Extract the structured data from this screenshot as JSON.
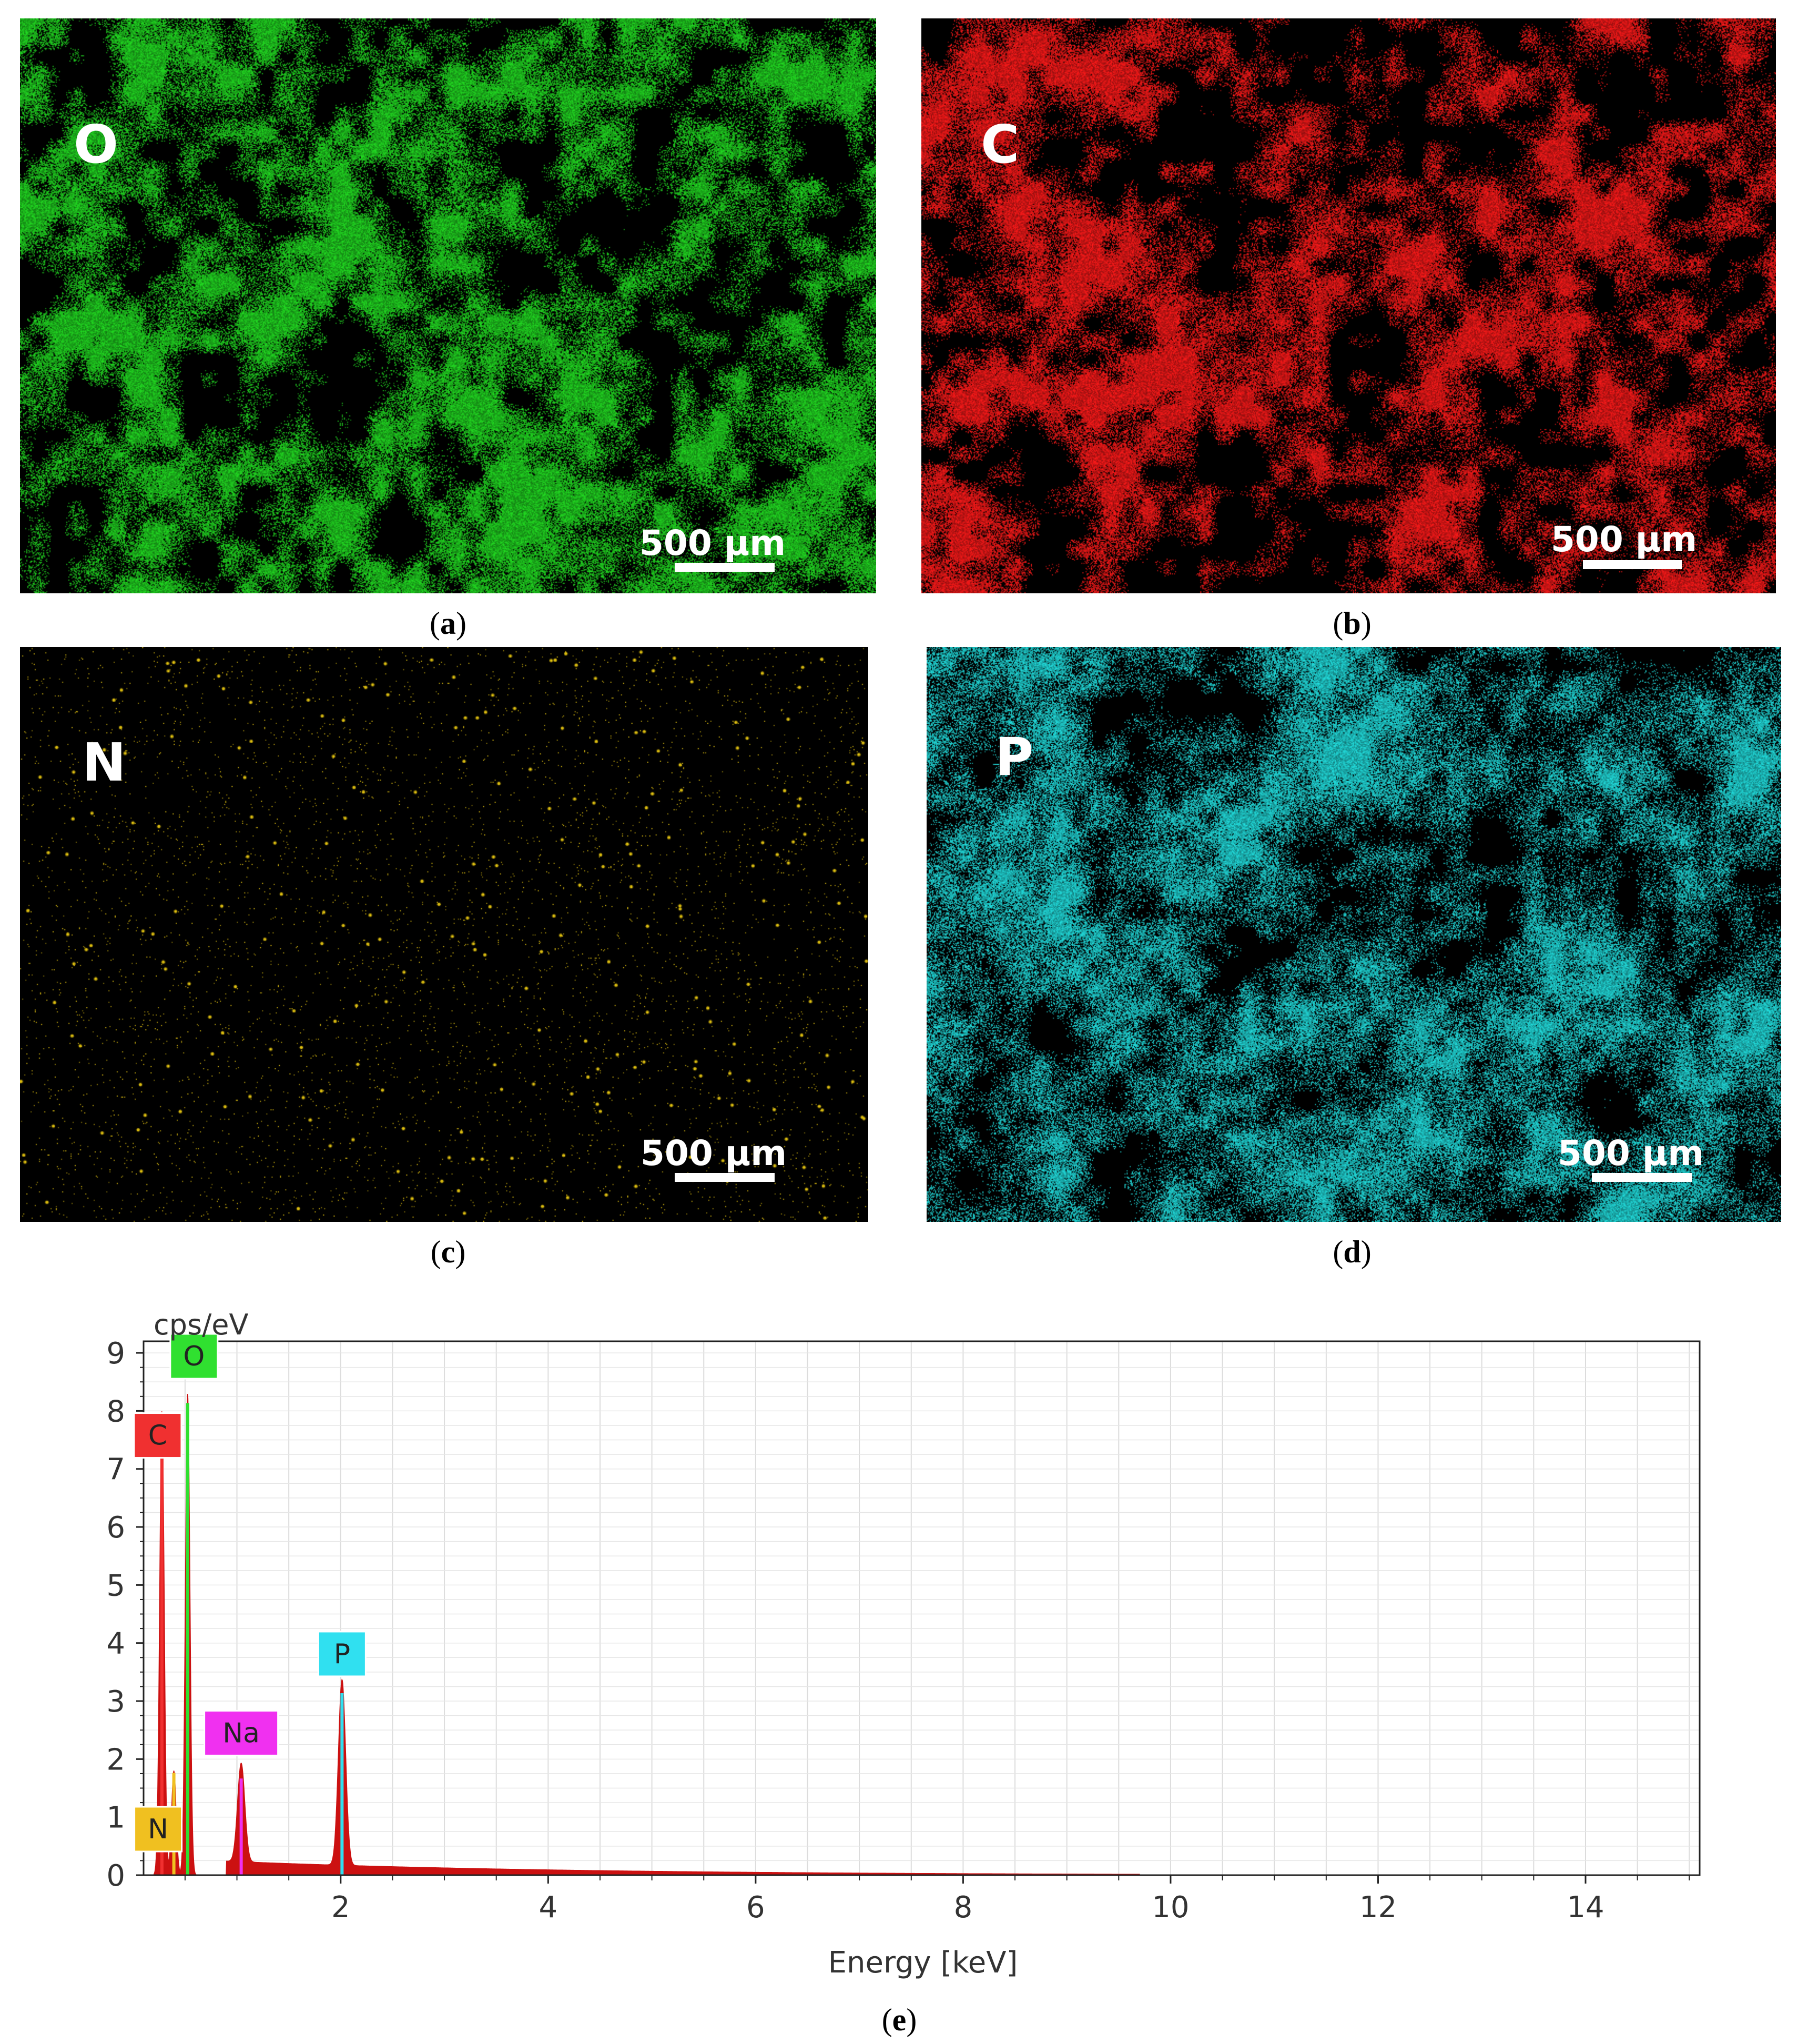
{
  "panels": [
    {
      "id": "a",
      "element": "O",
      "caption": "a",
      "scale_label": "500 µm",
      "color": "#22dd22",
      "density": 0.5,
      "style": "cluster"
    },
    {
      "id": "b",
      "element": "C",
      "caption": "b",
      "scale_label": "500 µm",
      "color": "#ff1a1a",
      "density": 0.48,
      "style": "cluster"
    },
    {
      "id": "c",
      "element": "N",
      "caption": "c",
      "scale_label": "500 µm",
      "color": "#e0c010",
      "density": 0.012,
      "style": "sparse"
    },
    {
      "id": "d",
      "element": "P",
      "caption": "d",
      "scale_label": "500 µm",
      "color": "#22e0e0",
      "density": 0.45,
      "style": "fine"
    }
  ],
  "spectrum_caption": "e",
  "chart_data": {
    "type": "area",
    "ylabel": "cps/eV",
    "xlabel": "Energy [keV]",
    "xlim": [
      0.1,
      15.1
    ],
    "ylim": [
      0,
      9.2
    ],
    "x_ticks": [
      2,
      4,
      6,
      8,
      10,
      12,
      14
    ],
    "y_ticks": [
      0,
      1,
      2,
      3,
      4,
      5,
      6,
      7,
      8,
      9
    ],
    "grid": true,
    "background_level": 0.2,
    "peaks": [
      {
        "element": "C",
        "energy": 0.277,
        "height": 8.0,
        "color": "#f03030"
      },
      {
        "element": "N",
        "energy": 0.392,
        "height": 1.8,
        "color": "#f0c020"
      },
      {
        "element": "O",
        "energy": 0.525,
        "height": 8.3,
        "color": "#30e030"
      },
      {
        "element": "Na",
        "energy": 1.041,
        "height": 1.7,
        "color": "#f030f0"
      },
      {
        "element": "P",
        "energy": 2.013,
        "height": 3.2,
        "color": "#30e0f0"
      }
    ],
    "series_color": "#cc1111"
  }
}
